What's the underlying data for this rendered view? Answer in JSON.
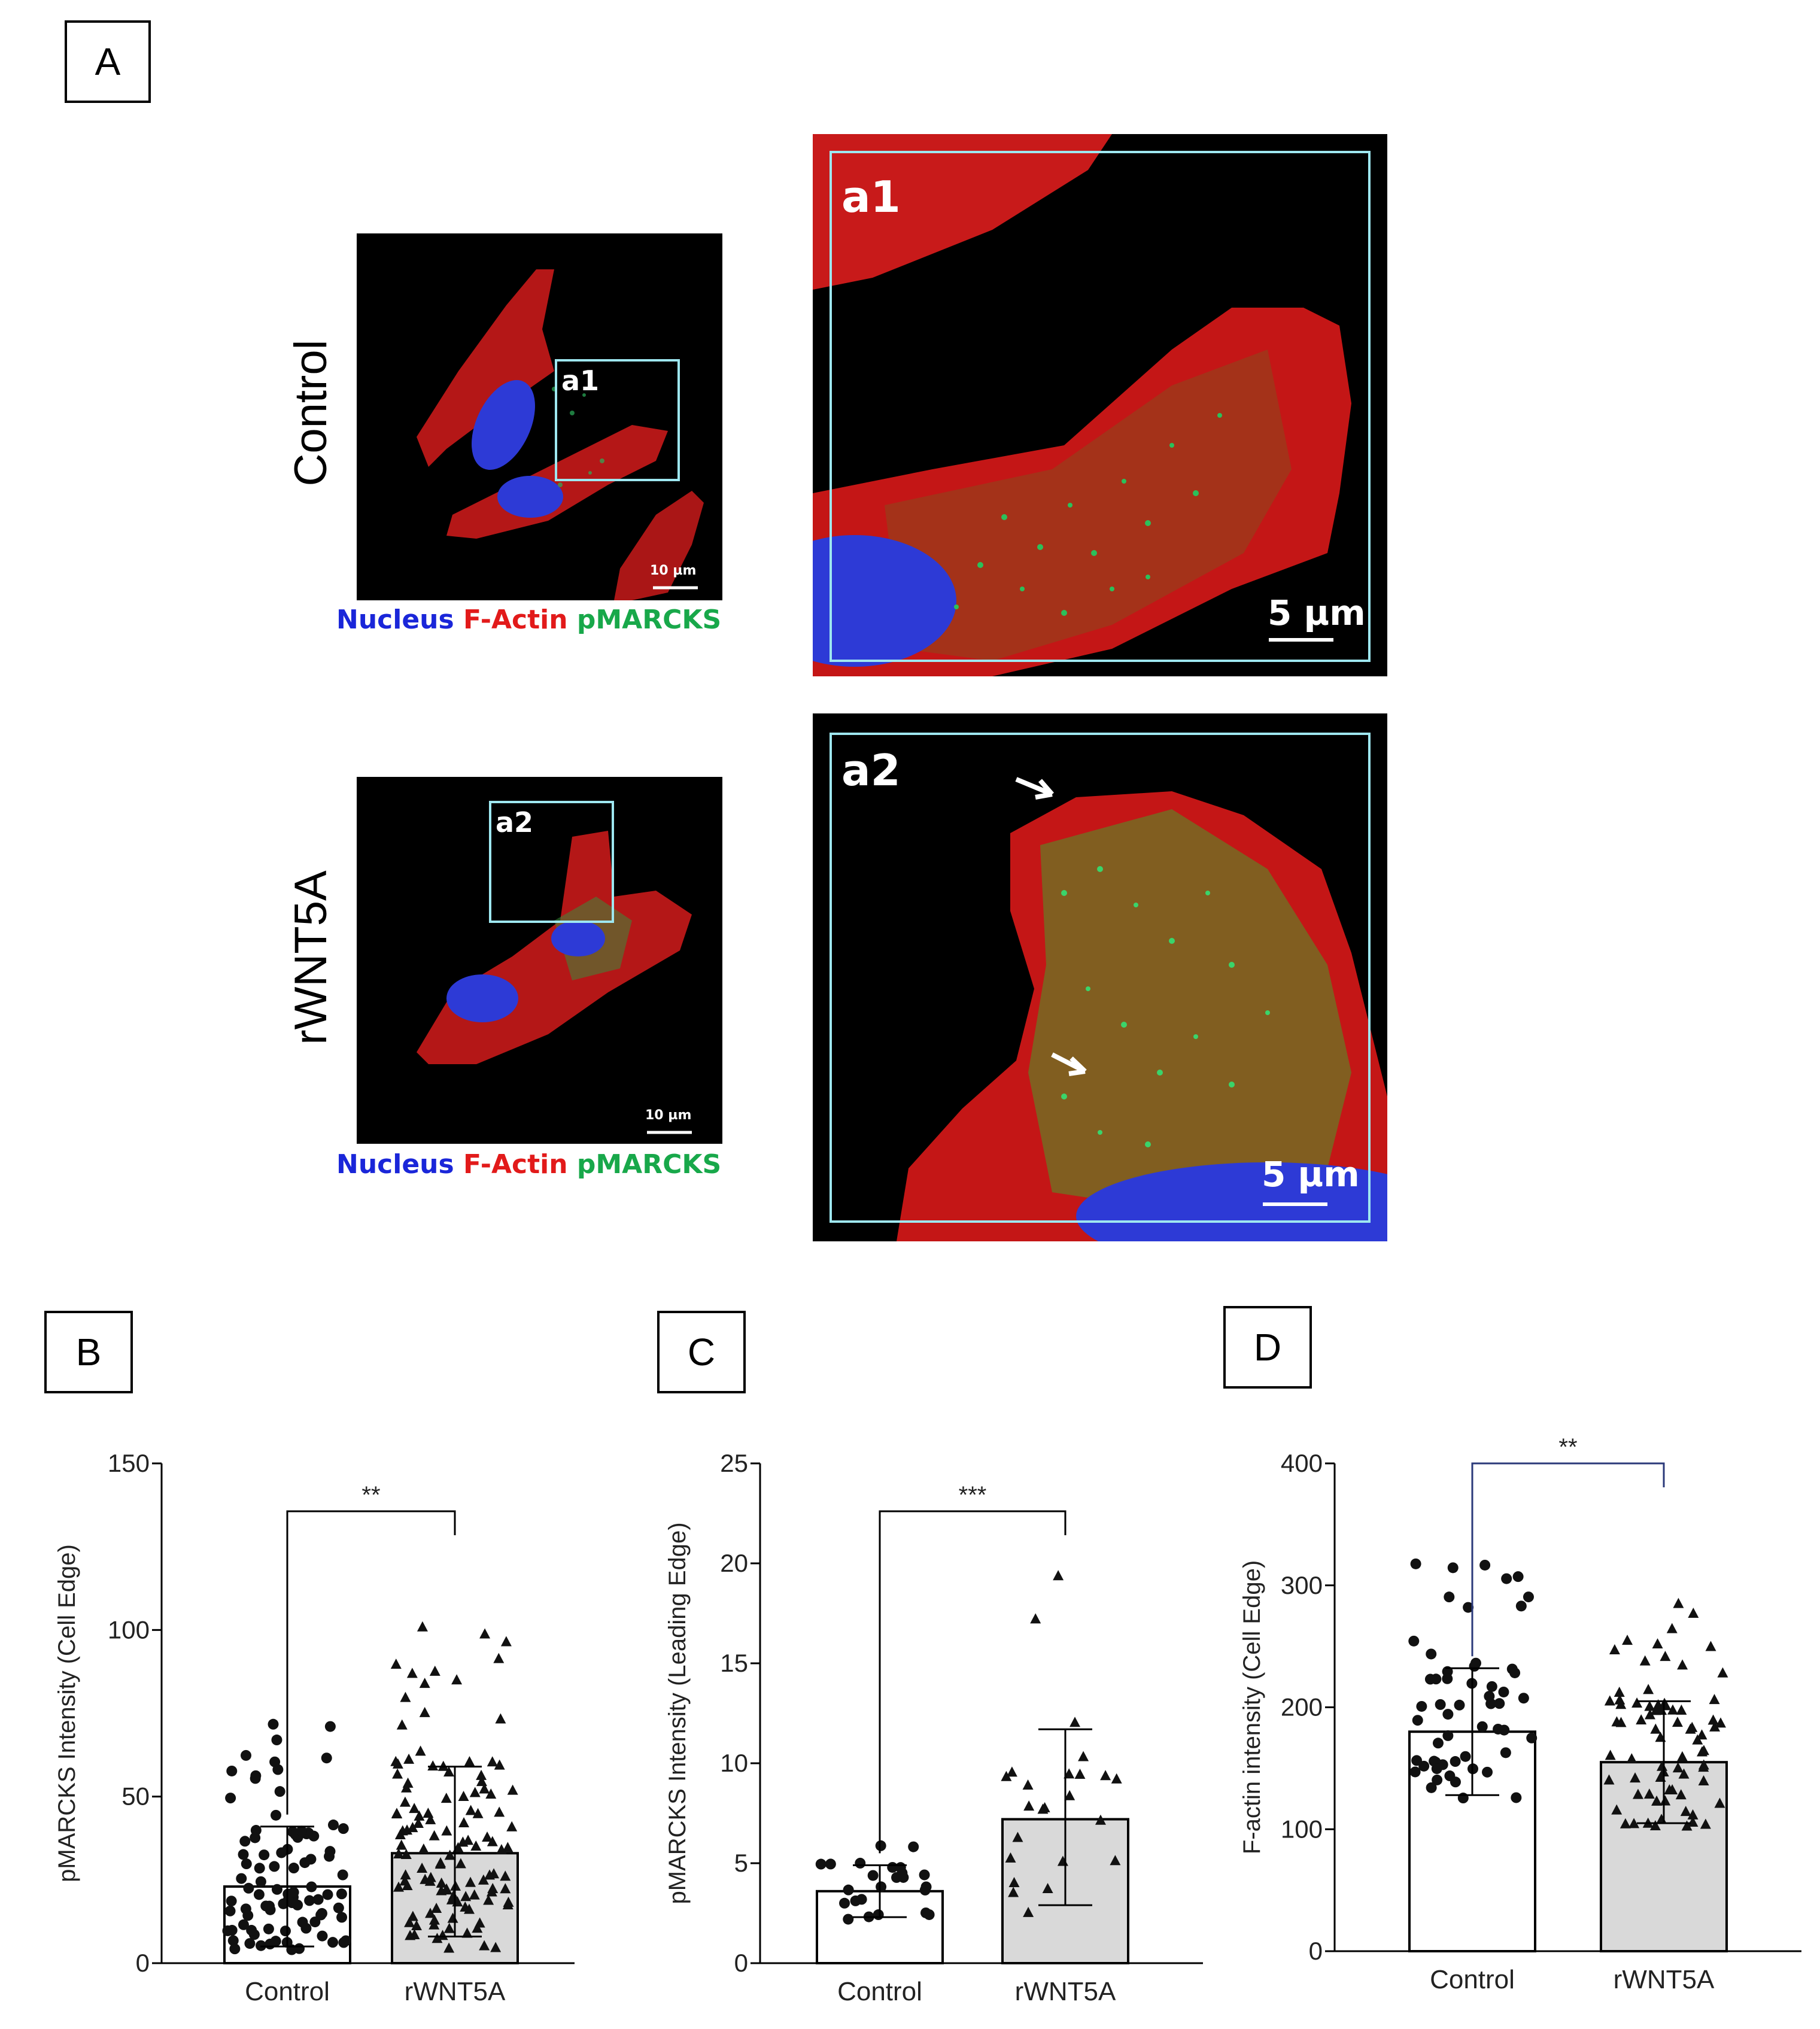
{
  "panel_a": {
    "letter": "A",
    "rows": [
      {
        "condition": "Control",
        "overview_scale": "10 µm",
        "inset_label": "a1",
        "zoom_label": "a1",
        "zoom_scale": "5 µm",
        "legend": {
          "nucleus": "Nucleus",
          "factin": "F-Actin",
          "pmarcks": "pMARCKS"
        }
      },
      {
        "condition": "rWNT5A",
        "overview_scale": "10 µm",
        "inset_label": "a2",
        "zoom_label": "a2",
        "zoom_scale": "5 µm",
        "legend": {
          "nucleus": "Nucleus",
          "factin": "F-Actin",
          "pmarcks": "pMARCKS"
        }
      }
    ],
    "colors": {
      "nucleus": "#1a26d9",
      "factin": "#e21a1a",
      "pmarcks": "#18a84a",
      "inset_box": "#9ee7f0"
    }
  },
  "chart_data": [
    {
      "panel": "B",
      "type": "bar",
      "categories": [
        "Control",
        "rWNT5A"
      ],
      "values": [
        23,
        33
      ],
      "sd_upper": [
        41,
        59
      ],
      "sd_lower": [
        5,
        8
      ],
      "ylabel": "pMARCKS  Intensity (Cell Edge)",
      "ylim": [
        0,
        150
      ],
      "yticks": [
        "0",
        "50",
        "100",
        "150"
      ],
      "significance": "**",
      "bar_fills": [
        "#ffffff",
        "#d9d9d9"
      ]
    },
    {
      "panel": "C",
      "type": "bar",
      "categories": [
        "Control",
        "rWNT5A"
      ],
      "values": [
        3.6,
        7.2
      ],
      "sd_upper": [
        4.9,
        11.7
      ],
      "sd_lower": [
        2.3,
        2.9
      ],
      "ylabel": "pMARCKS Intensity (Leading Edge)",
      "ylim": [
        0,
        25
      ],
      "yticks": [
        "0",
        "5",
        "10",
        "15",
        "20",
        "25"
      ],
      "significance": "***",
      "bar_fills": [
        "#ffffff",
        "#d9d9d9"
      ]
    },
    {
      "panel": "D",
      "type": "bar",
      "categories": [
        "Control",
        "rWNT5A"
      ],
      "values": [
        180,
        155
      ],
      "sd_upper": [
        232,
        205
      ],
      "sd_lower": [
        128,
        105
      ],
      "ylabel": "F-actin intensity (Cell Edge)",
      "ylim": [
        0,
        400
      ],
      "yticks": [
        "0",
        "100",
        "200",
        "300",
        "400"
      ],
      "significance": "**",
      "bar_fills": [
        "#ffffff",
        "#d9d9d9"
      ],
      "bracket_color": "#2b3a7a"
    }
  ]
}
